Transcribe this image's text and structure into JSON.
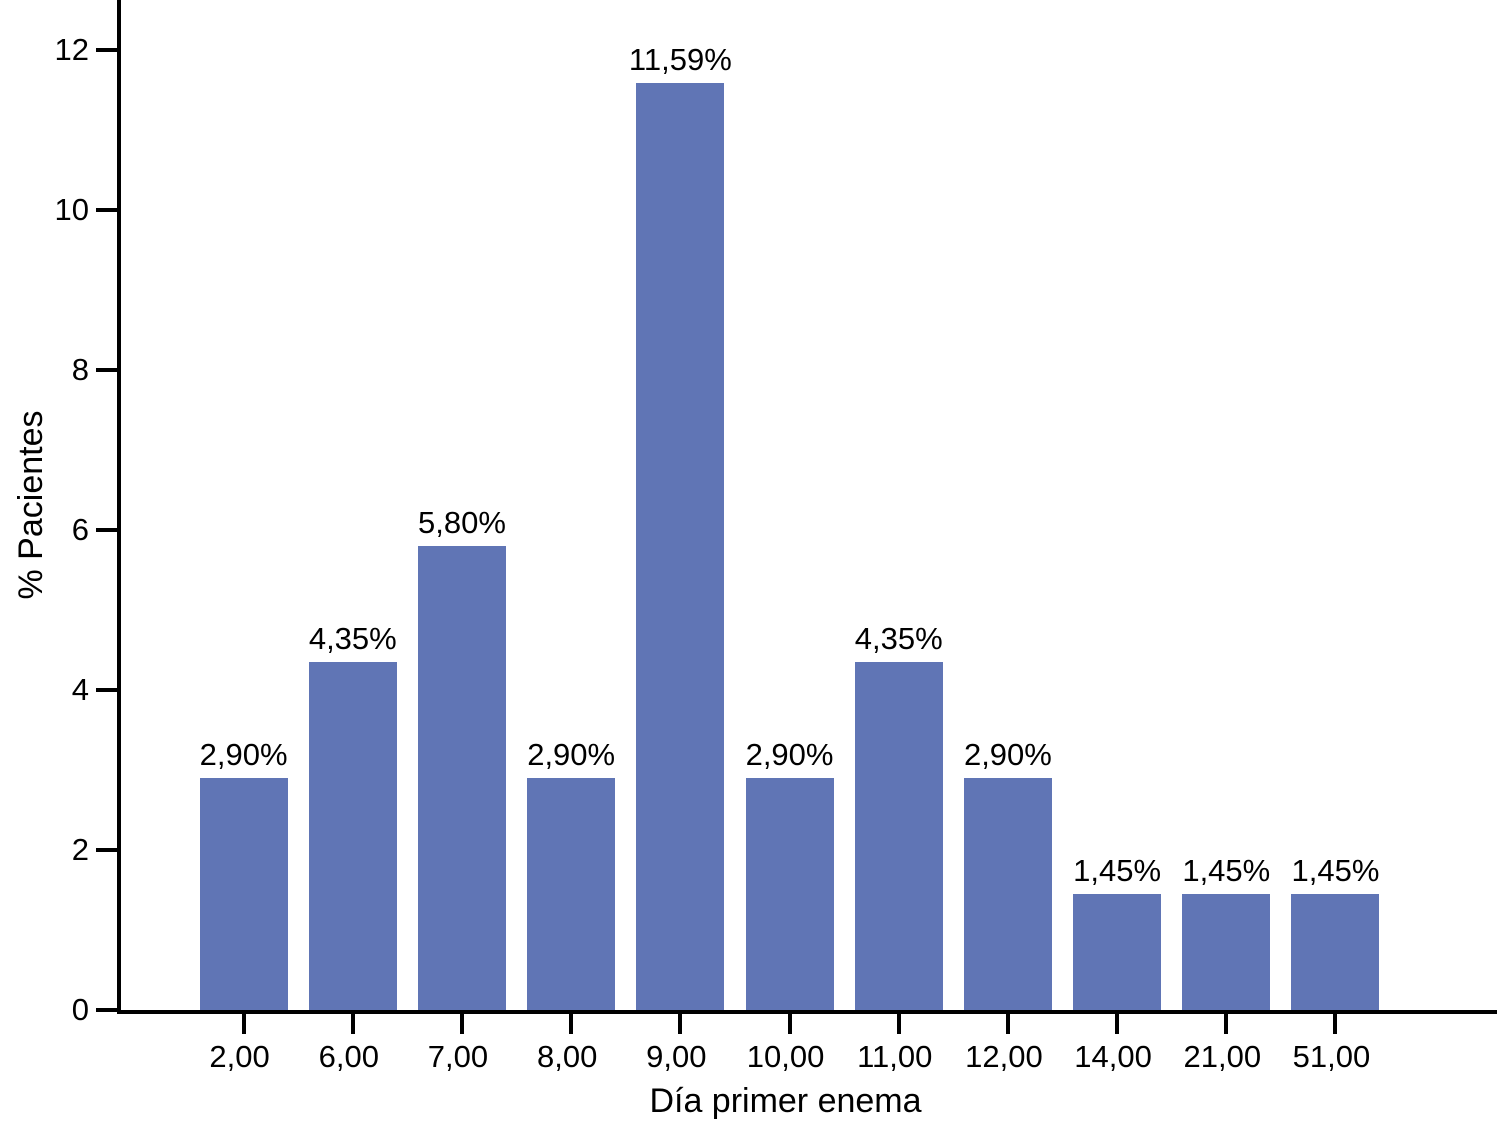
{
  "chart_data": {
    "type": "bar",
    "xlabel": "Día primer enema",
    "ylabel": "% Pacientes",
    "categories": [
      "2,00",
      "6,00",
      "7,00",
      "8,00",
      "9,00",
      "10,00",
      "11,00",
      "12,00",
      "14,00",
      "21,00",
      "51,00"
    ],
    "values": [
      2.9,
      4.35,
      5.8,
      2.9,
      11.59,
      2.9,
      4.35,
      2.9,
      1.45,
      1.45,
      1.45
    ],
    "bar_labels": [
      "2,90%",
      "4,35%",
      "5,80%",
      "2,90%",
      "11,59%",
      "2,90%",
      "4,35%",
      "2,90%",
      "1,45%",
      "1,45%",
      "1,45%"
    ],
    "y_ticks": [
      0,
      2,
      4,
      6,
      8,
      10,
      12
    ],
    "ylim": [
      0,
      12.6
    ],
    "grid": false,
    "legend_position": "none",
    "bar_color": "#6075B5",
    "axis_color": "#000000",
    "text_color": "#000000",
    "background_color": "#FFFFFF"
  }
}
